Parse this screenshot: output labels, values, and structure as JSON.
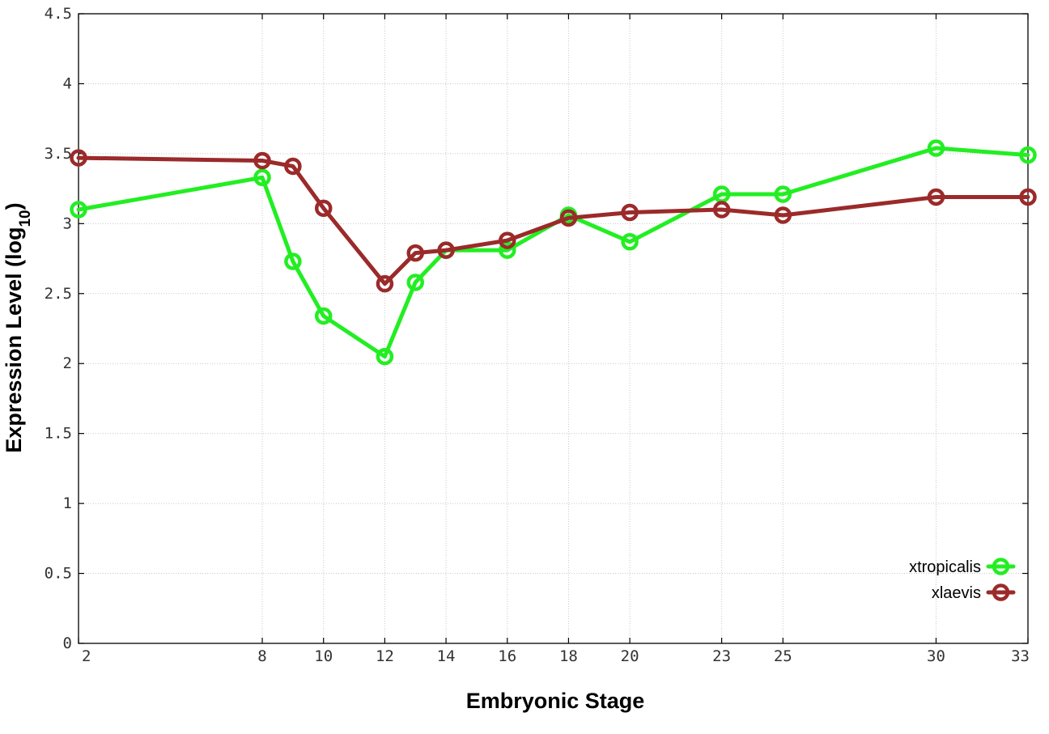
{
  "chart_data": {
    "type": "line",
    "title": "",
    "xlabel": "Embryonic Stage",
    "ylabel_main": "Expression Level (log",
    "ylabel_sub": "10",
    "ylabel_close": ")",
    "x": [
      2,
      8,
      9,
      10,
      12,
      13,
      14,
      16,
      18,
      20,
      23,
      25,
      30,
      33
    ],
    "x_tick_labels": [
      "2",
      "8",
      "10",
      "12",
      "14",
      "16",
      "18",
      "20",
      "23",
      "25",
      "30",
      "33"
    ],
    "x_tick_values": [
      2,
      8,
      10,
      12,
      14,
      16,
      18,
      20,
      23,
      25,
      30,
      33
    ],
    "xlim": [
      2,
      33
    ],
    "ylim": [
      0,
      4.5
    ],
    "y_tick_labels": [
      "0",
      "0.5",
      "1",
      "1.5",
      "2",
      "2.5",
      "3",
      "3.5",
      "4",
      "4.5"
    ],
    "y_tick_values": [
      0,
      0.5,
      1,
      1.5,
      2,
      2.5,
      3,
      3.5,
      4,
      4.5
    ],
    "grid": true,
    "legend_position": "bottom-right",
    "series": [
      {
        "name": "xtropicalis",
        "color": "#22ee22",
        "values": [
          3.1,
          3.33,
          2.73,
          2.34,
          2.05,
          2.58,
          2.81,
          2.81,
          3.06,
          2.87,
          3.21,
          3.21,
          3.54,
          3.49
        ]
      },
      {
        "name": "xlaevis",
        "color": "#9b2a2a",
        "values": [
          3.47,
          3.45,
          3.41,
          3.11,
          2.57,
          2.79,
          2.81,
          2.88,
          3.04,
          3.08,
          3.1,
          3.06,
          3.19,
          3.19
        ]
      }
    ]
  }
}
